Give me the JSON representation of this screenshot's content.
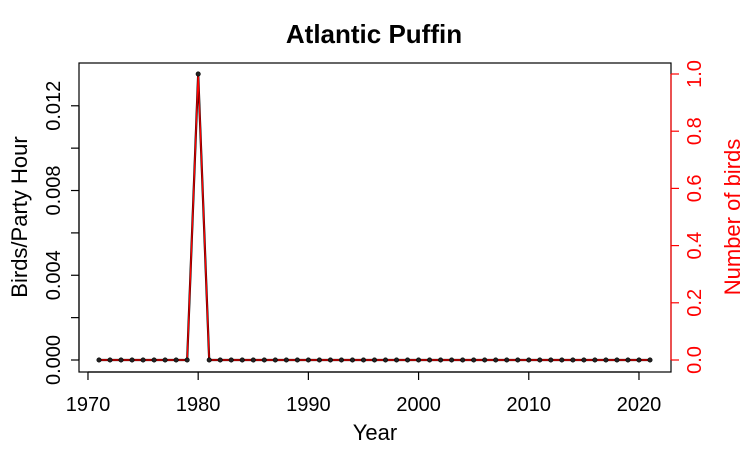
{
  "chart_data": {
    "type": "line",
    "title": "Atlantic Puffin",
    "xlabel": "Year",
    "ylabel": "Birds/Party Hour",
    "ylabel_right": "Number of birds",
    "xlim": [
      1971,
      2021
    ],
    "ylim": [
      0,
      0.0135
    ],
    "ylim_right": [
      0,
      1.0
    ],
    "x_ticks": [
      "1970",
      "1980",
      "1990",
      "2000",
      "2010",
      "2020"
    ],
    "y_ticks": [
      "0.000",
      "0.004",
      "0.008",
      "0.012"
    ],
    "y_ticks_right": [
      "0.0",
      "0.2",
      "0.4",
      "0.6",
      "0.8",
      "1.0"
    ],
    "grid": false,
    "colors": {
      "left_axis": "#000000",
      "right_axis": "#ff0000",
      "birds_per_party_hour": "#000000",
      "number_of_birds": "#ff0000"
    },
    "x": [
      1971,
      1972,
      1973,
      1974,
      1975,
      1976,
      1977,
      1978,
      1979,
      1980,
      1981,
      1982,
      1983,
      1984,
      1985,
      1986,
      1987,
      1988,
      1989,
      1990,
      1991,
      1992,
      1993,
      1994,
      1995,
      1996,
      1997,
      1998,
      1999,
      2000,
      2001,
      2002,
      2003,
      2004,
      2005,
      2006,
      2007,
      2008,
      2009,
      2010,
      2011,
      2012,
      2013,
      2014,
      2015,
      2016,
      2017,
      2018,
      2019,
      2020,
      2021
    ],
    "series": [
      {
        "axis": "left",
        "values": [
          0,
          0,
          0,
          0,
          0,
          0,
          0,
          0,
          0,
          0.0135,
          0,
          0,
          0,
          0,
          0,
          0,
          0,
          0,
          0,
          0,
          0,
          0,
          0,
          0,
          0,
          0,
          0,
          0,
          0,
          0,
          0,
          0,
          0,
          0,
          0,
          0,
          0,
          0,
          0,
          0,
          0,
          0,
          0,
          0,
          0,
          0,
          0,
          0,
          0,
          0,
          0
        ]
      },
      {
        "axis": "right",
        "values": [
          0,
          0,
          0,
          0,
          0,
          0,
          0,
          0,
          0,
          1,
          0,
          0,
          0,
          0,
          0,
          0,
          0,
          0,
          0,
          0,
          0,
          0,
          0,
          0,
          0,
          0,
          0,
          0,
          0,
          0,
          0,
          0,
          0,
          0,
          0,
          0,
          0,
          0,
          0,
          0,
          0,
          0,
          0,
          0,
          0,
          0,
          0,
          0,
          0,
          0,
          0
        ]
      }
    ]
  }
}
